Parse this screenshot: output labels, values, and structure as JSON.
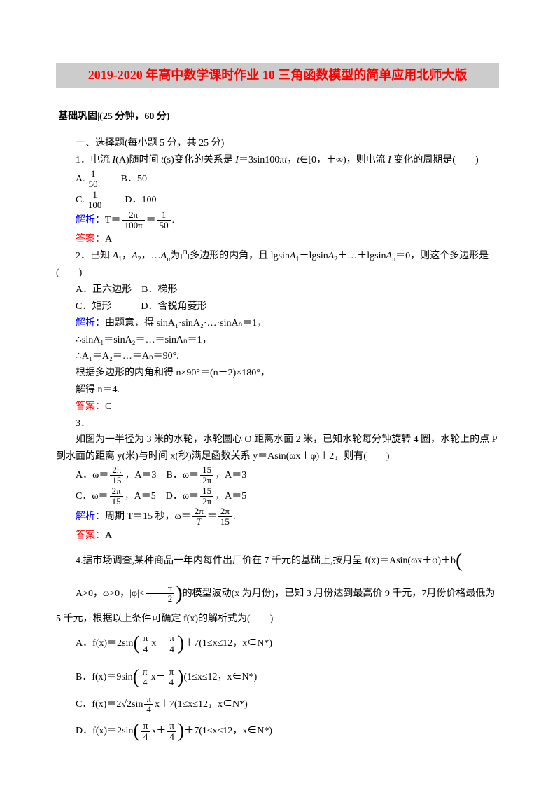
{
  "title": "2019-2020 年高中数学课时作业 10 三角函数模型的简单应用北师大版",
  "section_header": "|基础巩固|(25 分钟，60 分)",
  "s1_header": "一、选择题(每小题 5 分，共 25 分)",
  "q1": {
    "text_a": "1．电流 ",
    "text_b": "(A)随时间 ",
    "text_c": "(s)变化的关系是 ",
    "text_d": "＝3sin100π",
    "text_e": "，",
    "text_f": "∈[0，＋∞)，则电流 ",
    "text_g": " 变化的周期是(　　)",
    "A_label": "A.",
    "A_num": "1",
    "A_den": "50",
    "B": "B．50",
    "C_label": "C.",
    "C_num": "1",
    "C_den": "100",
    "D": "D．100",
    "solution_label": "解析：",
    "solution_a": "T＝",
    "sol_num1": "2π",
    "sol_den1": "100π",
    "sol_eq": "＝",
    "sol_num2": "1",
    "sol_den2": "50",
    "sol_end": ".",
    "answer_label": "答案：",
    "answer": "A"
  },
  "q2": {
    "text_a": "2．已知 ",
    "text_b": "，",
    "text_c": "，…",
    "text_d": "为凸多边形的内角，且 lgsin",
    "text_e": "＋lgsin",
    "text_f": "＋…＋lgsin",
    "text_g": "＝0，则这个多边形是(　　)",
    "A": "A．正六边形",
    "B": "B．梯形",
    "C": "C．矩形",
    "D": "D．含锐角菱形",
    "solution_label": "解析：",
    "sol1": "由题意，得 sinA₁·sinA₂·…·sinAₙ＝1，",
    "sol2": "∴sinA₁＝sinA₂＝…＝sinAₙ＝1，",
    "sol3": "∴A₁＝A₂＝…＝Aₙ＝90°.",
    "sol4": "根据多边形的内角和得 n×90°＝(n－2)×180°，",
    "sol5": "解得 n＝4.",
    "answer_label": "答案：",
    "answer": "C"
  },
  "q3": {
    "num": "3．",
    "text": "如图为一半径为 3 米的水轮，水轮圆心 O 距离水面 2 米，已知水轮每分钟旋转 4 圈，水轮上的点 P 到水面的距离 y(米)与时间 x(秒)满足函数关系 y＝Asin(ωx＋φ)＋2，则有(　　)",
    "A_label": "A．ω＝",
    "A_num": "2π",
    "A_den": "15",
    "A_tail": "，A＝3",
    "B_label": "B．ω＝",
    "B_num": "15",
    "B_den": "2π",
    "B_tail": "，A＝3",
    "C_label": "C．ω＝",
    "C_num": "2π",
    "C_den": "15",
    "C_tail": "，A＝5",
    "D_label": "D．ω＝",
    "D_num": "15",
    "D_den": "2π",
    "D_tail": "，A＝5",
    "solution_label": "解析：",
    "sol_a": "周期 T＝15 秒，ω＝",
    "sol_num1": "2π",
    "sol_den1_i": "T",
    "sol_eq": "＝",
    "sol_num2": "2π",
    "sol_den2": "15",
    "sol_end": ".",
    "answer_label": "答案：",
    "answer": "A"
  },
  "q4": {
    "text_a": "4.据市场调查,某种商品一年内每件出厂价在 7 千元的基础上,按月呈 f(x)＝Asin(ωx＋φ)＋b",
    "cond_a": "A>0，ω>0，|φ|<",
    "cond_num": "π",
    "cond_den": "2",
    "text_b": "的模型波动(x 为月份)，已知 3 月份达到最高价 9 千元，7月份价格最低为 5 千元，根据以上条件可确定 f(x)的解析式为(　　)",
    "A_label": "A．f(x)＝2sin",
    "A_num1": "π",
    "A_den1": "4",
    "A_mid": "x－",
    "A_num2": "π",
    "A_den2": "4",
    "A_tail": "＋7(1≤x≤12，x∈N*)",
    "B_label": "B．f(x)＝9sin",
    "B_num1": "π",
    "B_den1": "4",
    "B_mid": "x－",
    "B_num2": "π",
    "B_den2": "4",
    "B_tail": "(1≤x≤12，x∈N*)",
    "C_label": "C．f(x)＝2√2sin",
    "C_num": "π",
    "C_den": "4",
    "C_tail": "x＋7(1≤x≤12，x∈N*)",
    "D_label": "D．f(x)＝2sin",
    "D_num1": "π",
    "D_den1": "4",
    "D_mid": "x＋",
    "D_num2": "π",
    "D_den2": "4",
    "D_tail": "＋7(1≤x≤12，x∈N*)"
  }
}
